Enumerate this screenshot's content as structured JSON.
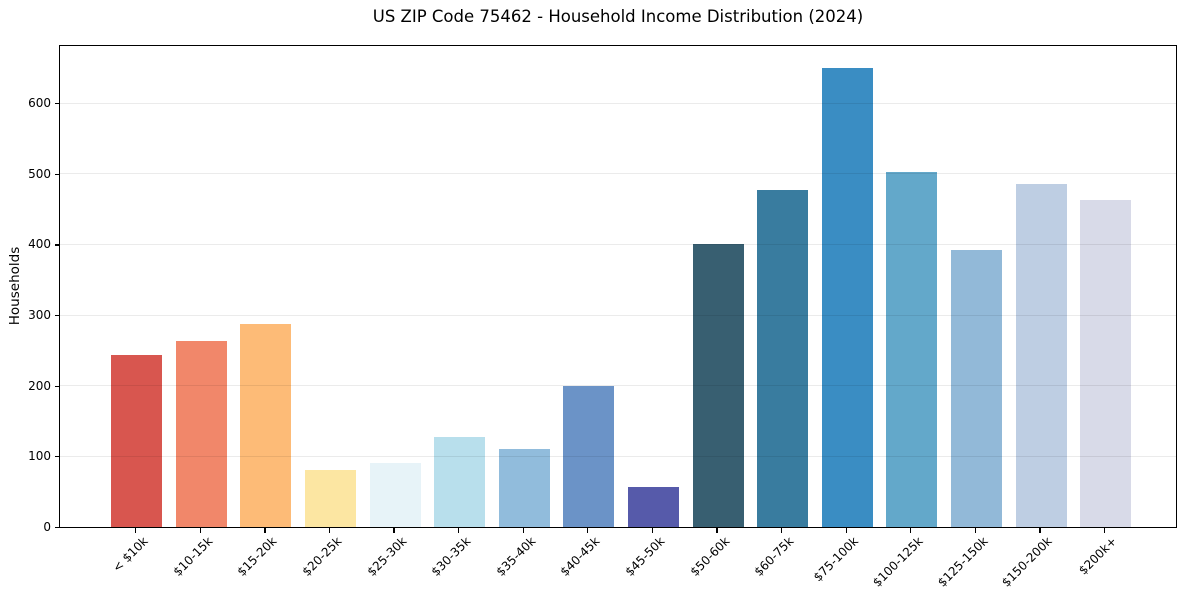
{
  "chart_data": {
    "type": "bar",
    "title": "US ZIP Code 75462 - Household Income Distribution (2024)",
    "xlabel": "",
    "ylabel": "Households",
    "categories": [
      "< $10k",
      "$10-15k",
      "$15-20k",
      "$20-25k",
      "$25-30k",
      "$30-35k",
      "$35-40k",
      "$40-45k",
      "$45-50k",
      "$50-60k",
      "$60-75k",
      "$75-100k",
      "$100-125k",
      "$125-150k",
      "$150-200k",
      "$200k+"
    ],
    "values": [
      243,
      263,
      288,
      81,
      90,
      128,
      110,
      199,
      57,
      400,
      477,
      650,
      503,
      392,
      486,
      463
    ],
    "bar_colors": [
      "#d8564f",
      "#f1876a",
      "#fdbb77",
      "#fce6a2",
      "#e7f3f8",
      "#b8dfec",
      "#91bcdc",
      "#6b93c7",
      "#565aaa",
      "#385f71",
      "#397c9f",
      "#3a8dc3",
      "#63a8ca",
      "#92b9d8",
      "#becee3",
      "#d8dae8"
    ],
    "yticks": [
      0,
      100,
      200,
      300,
      400,
      500,
      600
    ],
    "ytick_labels": [
      "0",
      "100",
      "200",
      "300",
      "400",
      "500",
      "600"
    ],
    "ylim": [
      0,
      683
    ],
    "grid": "horizontal-only",
    "gridline_color": "#e8e8e8",
    "legend": "none",
    "x_tick_rotation_deg": 45,
    "background_color": "#ffffff"
  }
}
